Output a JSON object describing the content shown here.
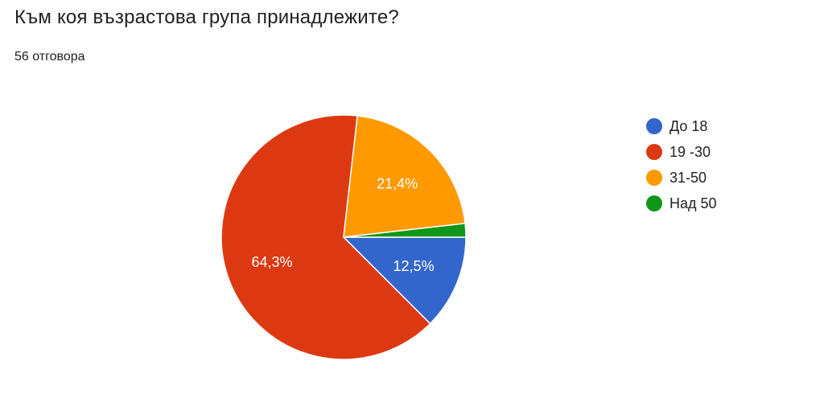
{
  "question": {
    "title": "Към коя възрастова група принадлежите?",
    "responses": "56 отговора"
  },
  "chart_data": {
    "type": "pie",
    "categories": [
      "До 18",
      "19 -30",
      "31-50",
      "Над 50"
    ],
    "values": [
      12.5,
      64.3,
      21.4,
      1.8
    ],
    "labels": [
      "12,5%",
      "64,3%",
      "21,4%",
      ""
    ],
    "colors": [
      "#3366cc",
      "#dc3912",
      "#ff9900",
      "#109618"
    ],
    "legend_position": "right"
  }
}
